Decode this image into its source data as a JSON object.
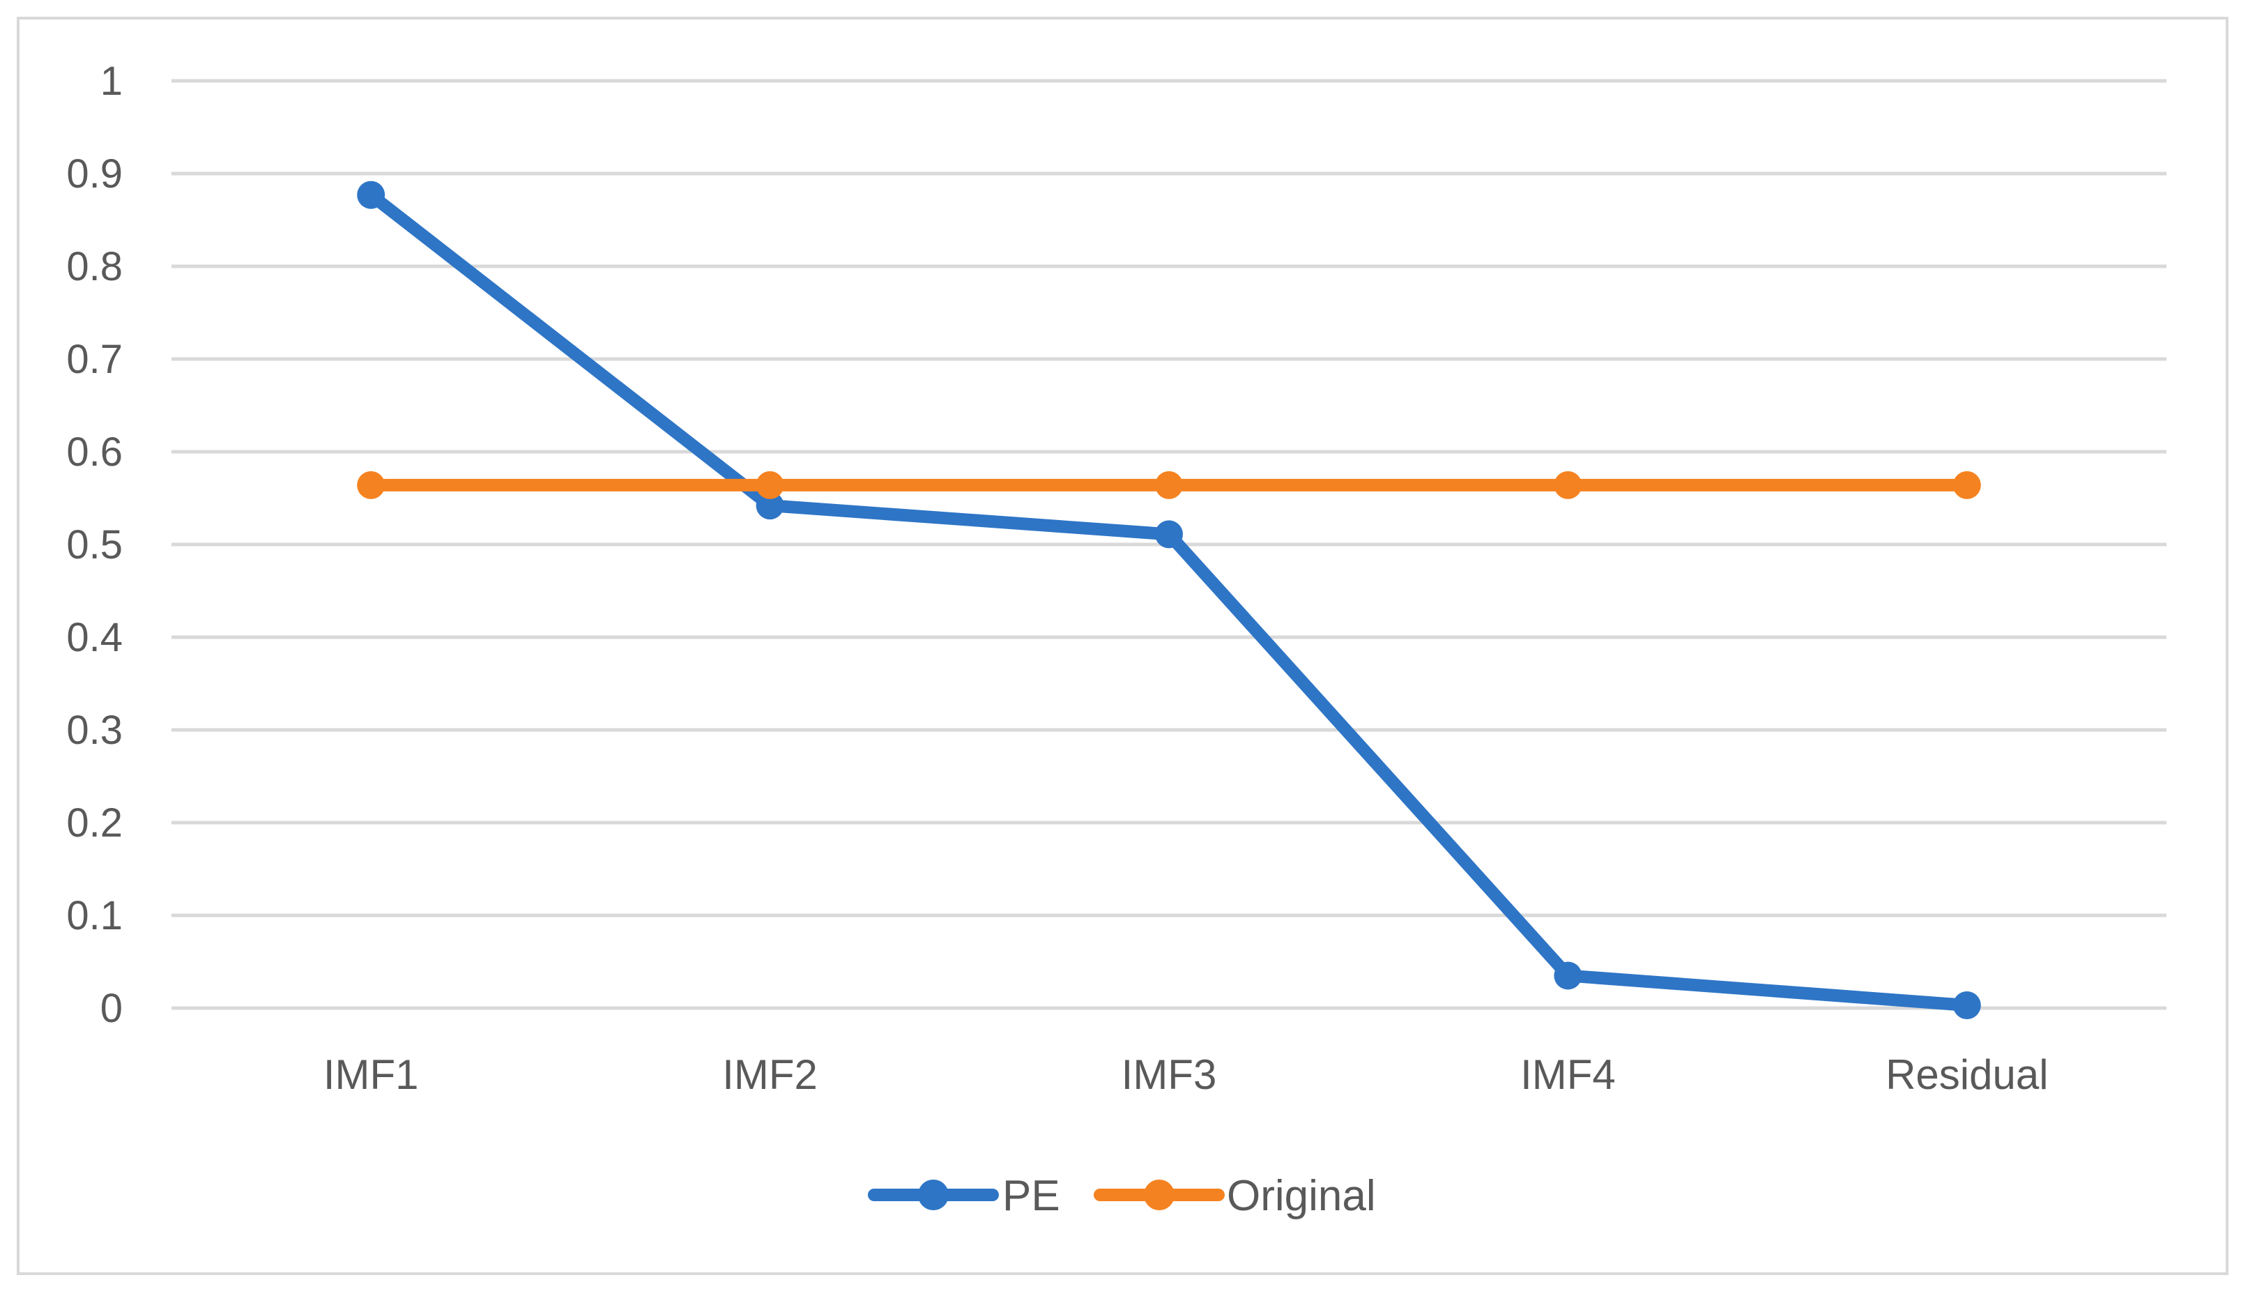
{
  "chart_data": {
    "type": "line",
    "categories": [
      "IMF1",
      "IMF2",
      "IMF3",
      "IMF4",
      "Residual"
    ],
    "series": [
      {
        "name": "PE",
        "values": [
          0.877,
          0.542,
          0.511,
          0.035,
          0.003
        ],
        "color": "#2e75c6"
      },
      {
        "name": "Original",
        "values": [
          0.564,
          0.564,
          0.564,
          0.564,
          0.564
        ],
        "color": "#f58220"
      }
    ],
    "yticks": [
      "0",
      "0.1",
      "0.2",
      "0.3",
      "0.4",
      "0.5",
      "0.6",
      "0.7",
      "0.8",
      "0.9",
      "1"
    ],
    "ylim": [
      0,
      1
    ],
    "grid": true,
    "legend_position": "bottom-center",
    "title": "",
    "xlabel": "",
    "ylabel": ""
  }
}
